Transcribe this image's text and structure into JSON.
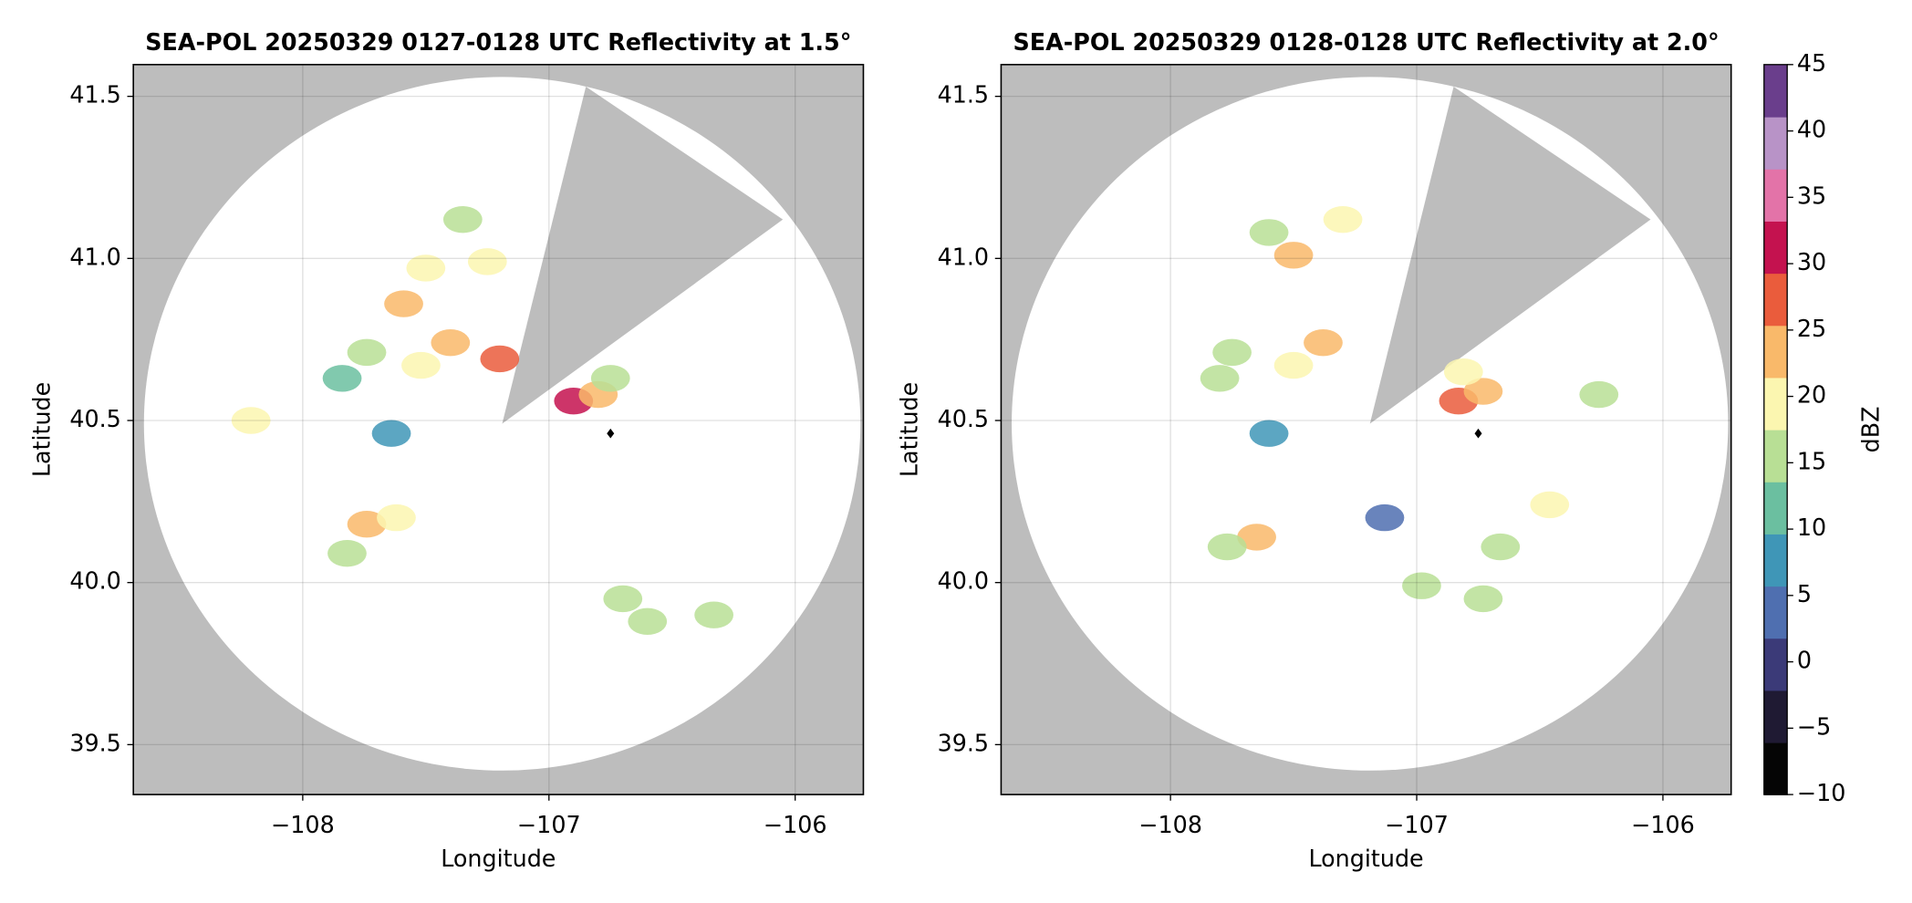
{
  "chart_data": [
    {
      "type": "radar",
      "title": "SEA-POL 20250329 0127-0128 UTC Reflectivity at 1.5°",
      "x_label": "Longitude",
      "y_label": "Latitude",
      "xlim": [
        -108.688,
        -105.723
      ],
      "ylim": [
        39.346,
        41.598
      ],
      "xticks": [
        {
          "value": -108,
          "label": "−108"
        },
        {
          "value": -107,
          "label": "−107"
        },
        {
          "value": -106,
          "label": "−106"
        }
      ],
      "yticks": [
        39.5,
        {
          "value": 40,
          "label": "40.0"
        },
        40.5,
        {
          "value": 41,
          "label": "41.0"
        },
        41.5
      ],
      "grid": true,
      "radar_coverage": {
        "center": [
          -107.19,
          40.49
        ],
        "radius": [
          1.455,
          1.07
        ],
        "blocked_sector": [
          [
            -106.85,
            41.53
          ],
          [
            -106.05,
            41.12
          ]
        ]
      },
      "marker": [
        -106.75,
        40.46
      ],
      "lon": [
        -106.9,
        -106.8,
        -106.75,
        -107.74,
        -107.62,
        -107.82,
        -107.4,
        -107.52,
        -107.74,
        -107.84,
        -107.5,
        -107.35,
        -107.25,
        -107.59,
        -108.21,
        -107.64,
        -106.7,
        -106.6,
        -106.33,
        -107.2
      ],
      "lat": [
        40.56,
        40.58,
        40.63,
        40.18,
        40.2,
        40.09,
        40.74,
        40.67,
        40.71,
        40.63,
        40.97,
        41.12,
        40.99,
        40.86,
        40.5,
        40.46,
        39.95,
        39.88,
        39.9,
        40.69
      ],
      "dbz": [
        30,
        25,
        15,
        22,
        18,
        15,
        24,
        18,
        14,
        12,
        20,
        16,
        18,
        22,
        18,
        8,
        15,
        16,
        14,
        28
      ]
    },
    {
      "type": "radar",
      "title": "SEA-POL 20250329 0128-0128 UTC Reflectivity at 2.0°",
      "x_label": "Longitude",
      "y_label": "Latitude",
      "xlim": [
        -108.688,
        -105.723
      ],
      "ylim": [
        39.346,
        41.598
      ],
      "xticks": [
        {
          "value": -108,
          "label": "−108"
        },
        {
          "value": -107,
          "label": "−107"
        },
        {
          "value": -106,
          "label": "−106"
        }
      ],
      "yticks": [
        39.5,
        {
          "value": 40,
          "label": "40.0"
        },
        40.5,
        {
          "value": 41,
          "label": "41.0"
        },
        41.5
      ],
      "grid": true,
      "radar_coverage": {
        "center": [
          -107.19,
          40.49
        ],
        "radius": [
          1.455,
          1.07
        ],
        "blocked_sector": [
          [
            -106.85,
            41.53
          ],
          [
            -106.05,
            41.12
          ]
        ]
      },
      "marker": [
        -106.75,
        40.46
      ],
      "lon": [
        -106.83,
        -106.73,
        -106.81,
        -107.38,
        -107.5,
        -107.75,
        -107.5,
        -107.3,
        -107.6,
        -107.65,
        -107.77,
        -107.6,
        -106.66,
        -106.46,
        -106.73,
        -106.98,
        -106.26,
        -107.8,
        -107.13
      ],
      "lat": [
        40.56,
        40.59,
        40.65,
        40.74,
        40.67,
        40.71,
        41.01,
        41.12,
        41.08,
        40.14,
        40.11,
        40.46,
        40.11,
        40.24,
        39.95,
        39.99,
        40.58,
        40.63,
        40.2
      ],
      "dbz": [
        28,
        25,
        18,
        25,
        20,
        15,
        22,
        18,
        16,
        22,
        16,
        8,
        15,
        18,
        16,
        14,
        14,
        14,
        5
      ]
    },
    {
      "type": "colorbar",
      "label": "dBZ",
      "lim": [
        -10,
        45
      ],
      "ticks": [
        {
          "value": -10,
          "label": "−10"
        },
        {
          "value": -5,
          "label": "−5"
        },
        0,
        5,
        10,
        15,
        20,
        25,
        30,
        35,
        40,
        45
      ],
      "colors": [
        "#050505",
        "#1f1a33",
        "#3b3a78",
        "#4f6fb0",
        "#3f96b7",
        "#6bbfa0",
        "#b8df95",
        "#fbf6b0",
        "#f9b96a",
        "#ea5c3c",
        "#c4124f",
        "#e373a8",
        "#b893c7",
        "#6a3e8c"
      ]
    }
  ]
}
